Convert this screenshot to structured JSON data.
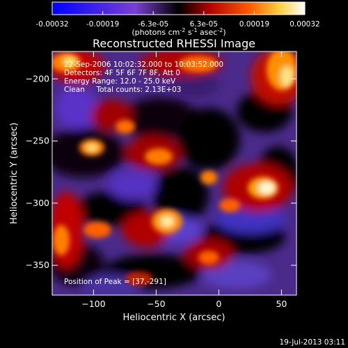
{
  "colorbar": {
    "tick_labels": [
      "-0.00032",
      "-0.00019",
      "-6.3e-05",
      "6.3e-05",
      "0.00019",
      "0.00032"
    ],
    "units_main": "(photons cm",
    "units_exp1": "-2",
    "units_mid": " s",
    "units_exp2": "-1",
    "units_tail": " asec",
    "units_exp3": "-2",
    "units_close": ")"
  },
  "title": "Reconstructed RHESSI Image",
  "annotations": {
    "line1": "22-Sep-2006 10:02:32.000 to 10:03:52.000",
    "line2": "Detectors: 4F 5F 6F 7F 8F, Att 0",
    "line3": "Energy Range: 12.0 - 25.0 keV",
    "line4": "Clean     Total counts: 2.13E+03",
    "peak": "Position of Peak = [37,-291]"
  },
  "axes": {
    "xlabel": "Heliocentric X (arcsec)",
    "ylabel": "Heliocentric Y (arcsec)",
    "xlim": [
      -133,
      62
    ],
    "ylim": [
      -374,
      -178
    ],
    "x_ticks": [
      -100,
      -50,
      0,
      50
    ],
    "x_tick_labels": [
      "−100",
      "−50",
      "0",
      "50"
    ],
    "y_ticks": [
      -200,
      -250,
      -300,
      -350
    ],
    "y_tick_labels": [
      "−200",
      "−250",
      "−300",
      "−350"
    ]
  },
  "footer": {
    "timestamp": "19-Jul-2013 03:11"
  }
}
